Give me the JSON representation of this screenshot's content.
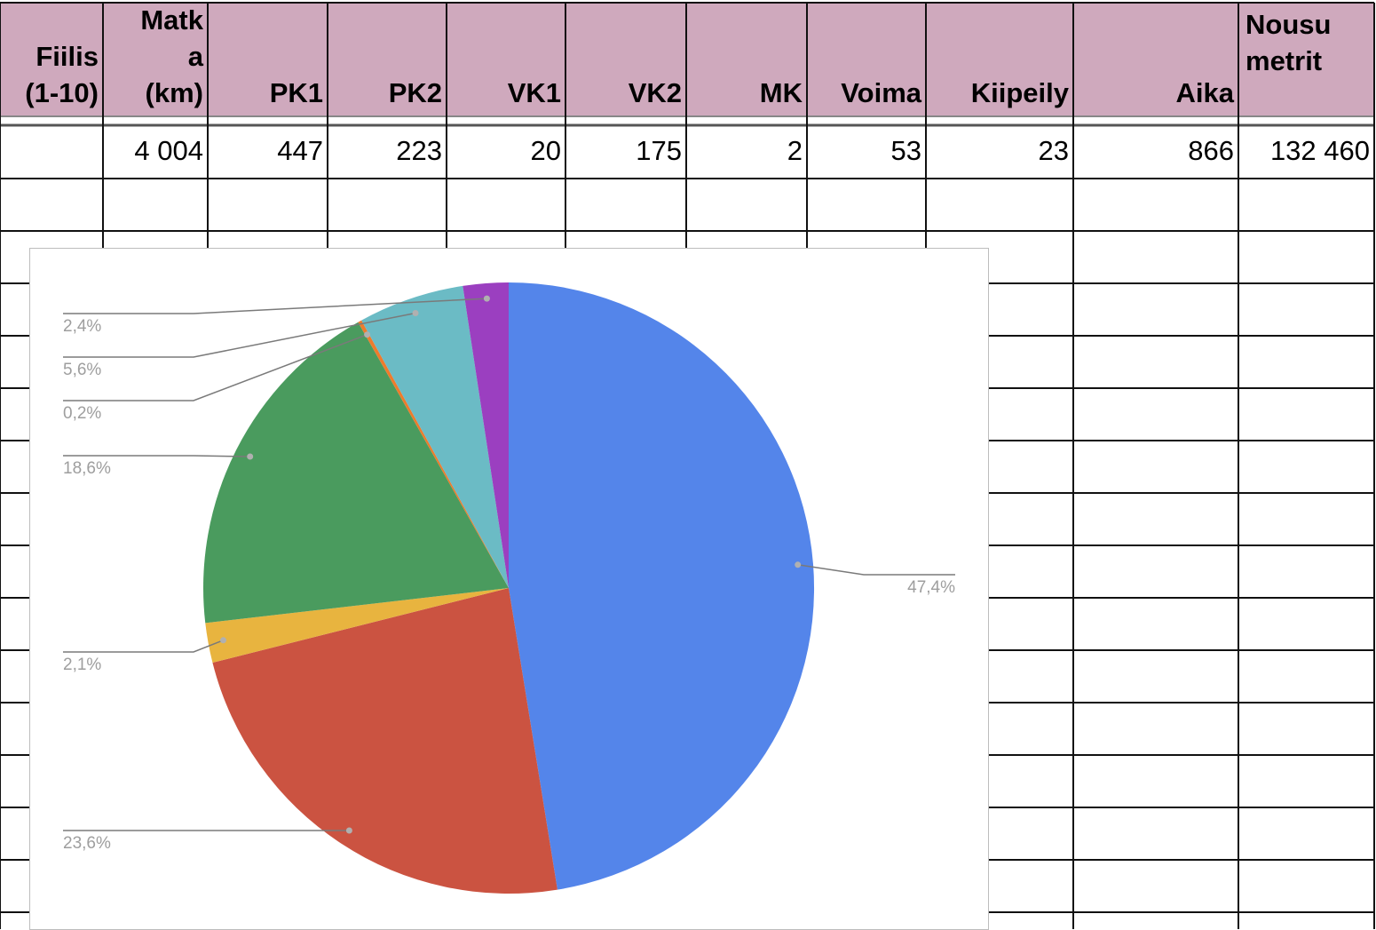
{
  "table": {
    "headers": [
      "Fiilis\n(1-10)",
      "Matk\na\n(km)",
      "PK1",
      "PK2",
      "VK1",
      "VK2",
      "MK",
      "Voima",
      "Kiipeily",
      "Aika",
      "Nousu\nmetrit"
    ],
    "rows": [
      [
        "",
        "4 004",
        "447",
        "223",
        "20",
        "175",
        "2",
        "53",
        "23",
        "866",
        "132 460"
      ]
    ],
    "header_color": "#cfa9bd"
  },
  "chart_data": {
    "type": "pie",
    "title": "",
    "slices": [
      {
        "value": 47.4,
        "label": "47,4%",
        "color": "#5485ea"
      },
      {
        "value": 23.6,
        "label": "23,6%",
        "color": "#cb5341"
      },
      {
        "value": 2.1,
        "label": "2,1%",
        "color": "#e8b43f"
      },
      {
        "value": 18.6,
        "label": "18,6%",
        "color": "#4a9b5e"
      },
      {
        "value": 0.2,
        "label": "0,2%",
        "color": "#ee7b2c"
      },
      {
        "value": 5.6,
        "label": "5,6%",
        "color": "#6bbbc5"
      },
      {
        "value": 2.4,
        "label": "2,4%",
        "color": "#9b3fc0"
      }
    ],
    "label_color": "#9e9e9e",
    "leader_color": "#7a7a7a"
  }
}
